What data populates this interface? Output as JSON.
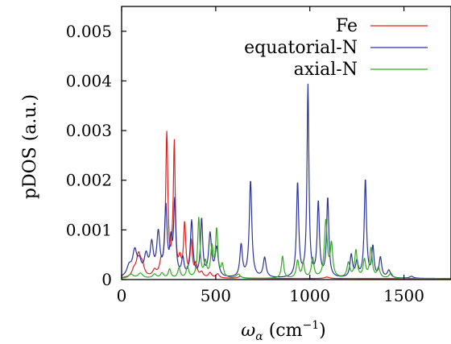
{
  "chart_data": {
    "type": "line",
    "title": "",
    "xlabel": "ω_α (cm⁻¹)",
    "xlabel_main": "ω",
    "xlabel_sub": "α",
    "xlabel_unit": " (cm",
    "xlabel_exp": "−1",
    "xlabel_close": ")",
    "ylabel": "pDOS (a.u.)",
    "xlim": [
      0,
      1750
    ],
    "ylim": [
      0,
      0.0055
    ],
    "xticks": [
      0,
      500,
      1000,
      1500
    ],
    "xtick_labels": [
      "0",
      "500",
      "1000",
      "1500"
    ],
    "yticks": [
      0,
      0.001,
      0.002,
      0.003,
      0.004,
      0.005
    ],
    "ytick_labels": [
      "0",
      "0.001",
      "0.002",
      "0.003",
      "0.004",
      "0.005"
    ],
    "legend_position": "top-right",
    "grid": false,
    "series": [
      {
        "name": "Fe",
        "color": "#dd2222",
        "baseline": 2e-05,
        "peaks": [
          [
            65,
            0.00012,
            12
          ],
          [
            90,
            0.00045,
            14
          ],
          [
            110,
            0.0002,
            12
          ],
          [
            175,
            0.00012,
            12
          ],
          [
            210,
            0.00025,
            10
          ],
          [
            240,
            0.00285,
            7
          ],
          [
            270,
            0.00025,
            7
          ],
          [
            280,
            0.00258,
            6
          ],
          [
            310,
            0.0003,
            8
          ],
          [
            335,
            0.00105,
            7
          ],
          [
            370,
            0.0007,
            7
          ],
          [
            395,
            0.00025,
            8
          ],
          [
            425,
            0.0001,
            10
          ],
          [
            470,
            0.0001,
            10
          ],
          [
            510,
            8e-05,
            10
          ],
          [
            630,
            4e-05,
            12
          ],
          [
            1090,
            3e-05,
            15
          ]
        ]
      },
      {
        "name": "equatorial-N",
        "color": "#2b3499",
        "baseline": 2e-05,
        "peaks": [
          [
            40,
            0.0002,
            15
          ],
          [
            70,
            0.0005,
            14
          ],
          [
            95,
            0.00025,
            12
          ],
          [
            130,
            0.0004,
            12
          ],
          [
            160,
            0.00062,
            10
          ],
          [
            195,
            0.00085,
            10
          ],
          [
            235,
            0.00138,
            8
          ],
          [
            262,
            0.00062,
            7
          ],
          [
            282,
            0.00148,
            7
          ],
          [
            325,
            0.00035,
            8
          ],
          [
            372,
            0.00112,
            8
          ],
          [
            425,
            0.00115,
            7
          ],
          [
            470,
            0.00085,
            9
          ],
          [
            505,
            0.00058,
            10
          ],
          [
            635,
            0.00065,
            8
          ],
          [
            685,
            0.00195,
            8
          ],
          [
            760,
            0.0004,
            9
          ],
          [
            935,
            0.0019,
            7
          ],
          [
            990,
            0.00385,
            6
          ],
          [
            1045,
            0.0015,
            7
          ],
          [
            1095,
            0.0016,
            7
          ],
          [
            1220,
            0.00045,
            8
          ],
          [
            1250,
            0.0003,
            8
          ],
          [
            1295,
            0.00198,
            7
          ],
          [
            1335,
            0.0006,
            7
          ],
          [
            1375,
            0.0004,
            8
          ],
          [
            1420,
            0.00015,
            10
          ],
          [
            1540,
            4e-05,
            12
          ]
        ]
      },
      {
        "name": "axial-N",
        "color": "#33aa22",
        "baseline": 2e-05,
        "peaks": [
          [
            50,
            8e-05,
            15
          ],
          [
            100,
            0.0001,
            15
          ],
          [
            175,
            8e-05,
            12
          ],
          [
            215,
            0.0001,
            10
          ],
          [
            255,
            0.00018,
            8
          ],
          [
            305,
            0.0002,
            8
          ],
          [
            350,
            0.00022,
            8
          ],
          [
            410,
            0.0012,
            7
          ],
          [
            445,
            0.0003,
            8
          ],
          [
            480,
            0.0006,
            8
          ],
          [
            505,
            0.00095,
            7
          ],
          [
            535,
            0.00025,
            8
          ],
          [
            620,
            8e-05,
            12
          ],
          [
            855,
            0.00045,
            7
          ],
          [
            935,
            0.00035,
            8
          ],
          [
            965,
            0.0003,
            7
          ],
          [
            1015,
            0.0004,
            8
          ],
          [
            1085,
            0.00115,
            9
          ],
          [
            1115,
            0.00065,
            8
          ],
          [
            1205,
            0.0003,
            9
          ],
          [
            1245,
            0.00055,
            8
          ],
          [
            1290,
            0.00035,
            8
          ],
          [
            1325,
            0.0006,
            8
          ],
          [
            1365,
            0.0002,
            9
          ],
          [
            1430,
            0.0001,
            10
          ]
        ]
      }
    ]
  }
}
